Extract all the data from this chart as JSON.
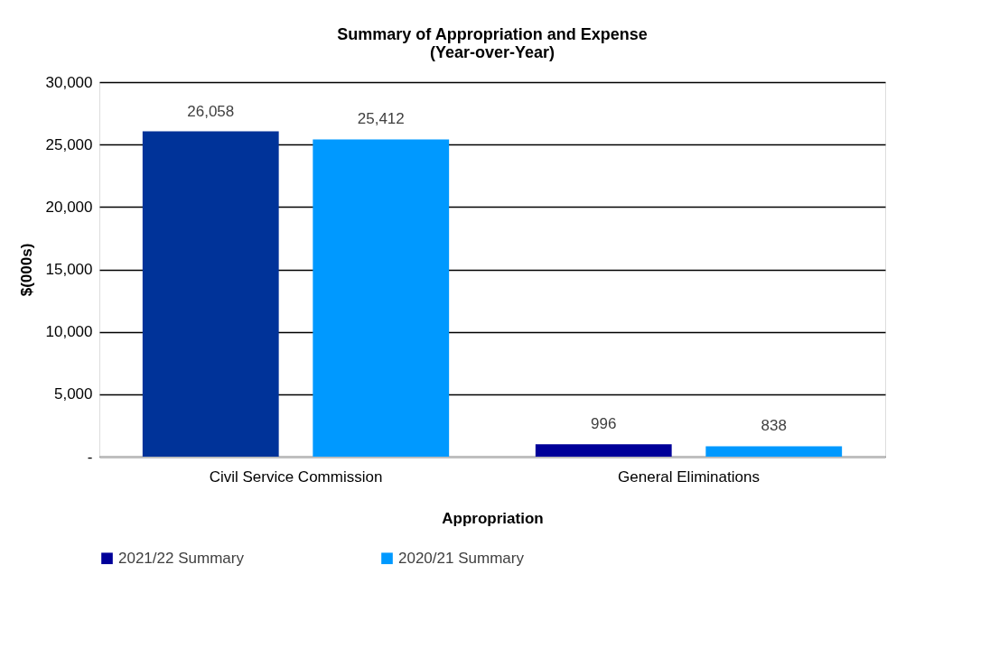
{
  "chart_data": {
    "type": "bar",
    "title": [
      "Summary of Appropriation and Expense",
      "(Year-over-Year)"
    ],
    "xlabel": "Appropriation",
    "ylabel": "$(000s)",
    "categories": [
      "Civil Service Commission",
      "General Eliminations"
    ],
    "series": [
      {
        "name": "2021/22 Summary",
        "color": "#000099",
        "colors": [
          "#003399",
          "#000099"
        ],
        "values": [
          26058,
          996
        ],
        "value_labels": [
          "26,058",
          "996"
        ]
      },
      {
        "name": "2020/21 Summary",
        "color": "#0099ff",
        "values": [
          25412,
          838
        ],
        "value_labels": [
          "25,412",
          "838"
        ]
      }
    ],
    "ylim": [
      0,
      30000
    ],
    "yticks": [
      {
        "value": 0,
        "label": "-"
      },
      {
        "value": 5000,
        "label": "5,000"
      },
      {
        "value": 10000,
        "label": "10,000"
      },
      {
        "value": 15000,
        "label": "15,000"
      },
      {
        "value": 20000,
        "label": "20,000"
      },
      {
        "value": 25000,
        "label": "25,000"
      },
      {
        "value": 30000,
        "label": "30,000"
      }
    ],
    "grid": "y",
    "legend": "bottom"
  }
}
